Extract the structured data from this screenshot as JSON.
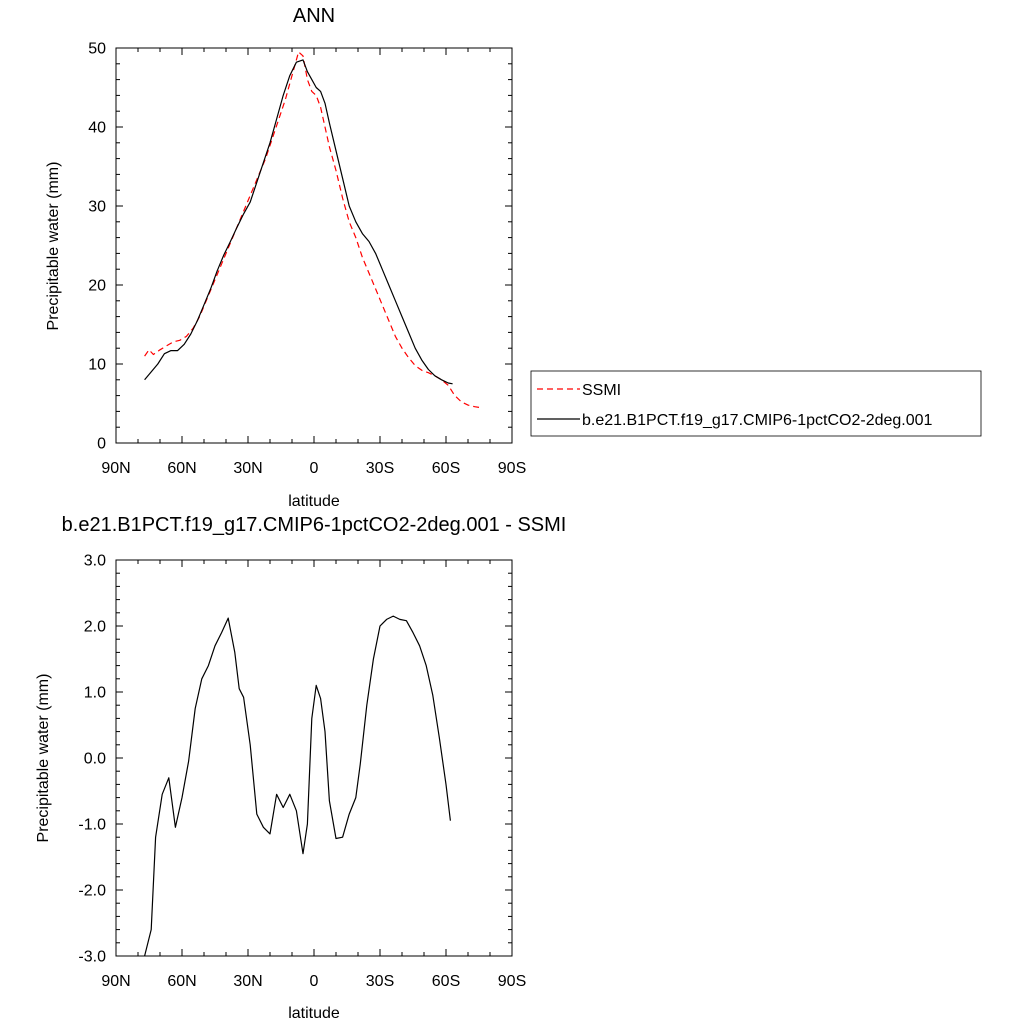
{
  "chart_data": [
    {
      "type": "line",
      "title": "ANN",
      "xlabel": "latitude",
      "ylabel": "Precipitable water (mm)",
      "xlim": [
        90,
        -90
      ],
      "ylim": [
        0,
        50
      ],
      "x_ticks": [
        90,
        60,
        30,
        0,
        -30,
        -60,
        -90
      ],
      "x_tick_labels": [
        "90N",
        "60N",
        "30N",
        "0",
        "30S",
        "60S",
        "90S"
      ],
      "y_ticks": [
        0,
        10,
        20,
        30,
        40,
        50
      ],
      "y_tick_labels": [
        "0",
        "10",
        "20",
        "30",
        "40",
        "50"
      ],
      "grid": false,
      "legend": {
        "placement": "right-outside"
      },
      "series": [
        {
          "name": "SSMI",
          "color": "#ff0000",
          "dash": "dashed",
          "x": [
            77,
            75,
            73,
            70,
            67,
            64,
            61,
            58,
            55,
            52,
            49,
            46,
            43,
            40,
            37,
            34,
            31,
            28,
            25,
            22,
            19,
            16,
            13,
            10,
            7,
            5,
            3,
            1,
            -1,
            -3,
            -5,
            -7,
            -10,
            -13,
            -16,
            -19,
            -22,
            -25,
            -28,
            -31,
            -34,
            -37,
            -40,
            -43,
            -46,
            -49,
            -52,
            -55,
            -58,
            -61,
            -64,
            -67,
            -70,
            -73,
            -75
          ],
          "y": [
            11.0,
            11.8,
            11.2,
            11.8,
            12.3,
            12.8,
            13.0,
            13.5,
            14.5,
            16.0,
            18.0,
            20.0,
            22.0,
            24.0,
            26.0,
            28.0,
            30.0,
            32.0,
            34.0,
            36.0,
            38.5,
            41.0,
            43.5,
            46.5,
            49.5,
            49.0,
            46.0,
            44.5,
            44.0,
            42.5,
            40.0,
            37.5,
            34.5,
            31.0,
            28.0,
            26.0,
            23.5,
            21.5,
            19.5,
            17.5,
            15.5,
            13.5,
            12.0,
            10.8,
            9.8,
            9.2,
            8.9,
            8.5,
            8.0,
            7.3,
            6.0,
            5.2,
            4.8,
            4.6,
            4.5
          ]
        },
        {
          "name": "b.e21.B1PCT.f19_g17.CMIP6-1pctCO2-2deg.001",
          "color": "#000000",
          "dash": "solid",
          "x": [
            77,
            74,
            71,
            68,
            65,
            62,
            59,
            56,
            53,
            50,
            47,
            44,
            41,
            38,
            35,
            32,
            29,
            26,
            23,
            20,
            17,
            14,
            11,
            8,
            5,
            3,
            1,
            -1,
            -3,
            -5,
            -7,
            -10,
            -13,
            -16,
            -19,
            -22,
            -25,
            -28,
            -31,
            -34,
            -37,
            -40,
            -43,
            -46,
            -49,
            -52,
            -55,
            -58,
            -61,
            -63
          ],
          "y": [
            8.0,
            9.0,
            10.0,
            11.3,
            11.7,
            11.7,
            12.5,
            13.8,
            15.5,
            17.5,
            19.5,
            21.8,
            23.8,
            25.5,
            27.3,
            29.0,
            30.5,
            33.0,
            35.5,
            38.0,
            41.0,
            44.0,
            46.5,
            48.2,
            48.5,
            47.0,
            46.0,
            45.0,
            44.5,
            43.0,
            40.5,
            37.0,
            33.5,
            30.0,
            28.0,
            26.5,
            25.5,
            24.0,
            22.0,
            20.0,
            18.0,
            16.0,
            14.0,
            12.0,
            10.5,
            9.3,
            8.5,
            8.0,
            7.6,
            7.5
          ]
        }
      ]
    },
    {
      "type": "line",
      "title": "b.e21.B1PCT.f19_g17.CMIP6-1pctCO2-2deg.001 - SSMI",
      "xlabel": "latitude",
      "ylabel": "Precipitable water (mm)",
      "xlim": [
        90,
        -90
      ],
      "ylim": [
        -3.0,
        3.0
      ],
      "x_ticks": [
        90,
        60,
        30,
        0,
        -30,
        -60,
        -90
      ],
      "x_tick_labels": [
        "90N",
        "60N",
        "30N",
        "0",
        "30S",
        "60S",
        "90S"
      ],
      "y_ticks": [
        -3.0,
        -2.0,
        -1.0,
        0.0,
        1.0,
        2.0,
        3.0
      ],
      "y_tick_labels": [
        "-3.0",
        "-2.0",
        "-1.0",
        "0.0",
        "1.0",
        "2.0",
        "3.0"
      ],
      "grid": false,
      "series": [
        {
          "color": "#000000",
          "dash": "solid",
          "x": [
            77,
            74,
            72,
            69,
            66,
            63,
            60,
            57,
            54,
            51,
            48,
            45,
            42,
            39,
            36,
            34,
            32,
            29,
            26,
            23,
            20,
            17,
            14,
            11,
            8,
            5,
            3,
            1,
            -1,
            -3,
            -5,
            -7,
            -10,
            -13,
            -16,
            -19,
            -21,
            -24,
            -27,
            -30,
            -33,
            -36,
            -39,
            -42,
            -45,
            -48,
            -51,
            -54,
            -57,
            -60,
            -62
          ],
          "y": [
            -3.0,
            -2.6,
            -1.2,
            -0.55,
            -0.3,
            -1.05,
            -0.6,
            -0.05,
            0.75,
            1.2,
            1.4,
            1.7,
            1.9,
            2.12,
            1.6,
            1.05,
            0.92,
            0.2,
            -0.85,
            -1.05,
            -1.15,
            -0.55,
            -0.75,
            -0.55,
            -0.8,
            -1.45,
            -1.0,
            0.6,
            1.1,
            0.9,
            0.4,
            -0.65,
            -1.22,
            -1.2,
            -0.85,
            -0.6,
            -0.1,
            0.8,
            1.5,
            2.0,
            2.1,
            2.15,
            2.1,
            2.08,
            1.9,
            1.7,
            1.4,
            0.95,
            0.3,
            -0.4,
            -0.95
          ]
        }
      ]
    }
  ]
}
